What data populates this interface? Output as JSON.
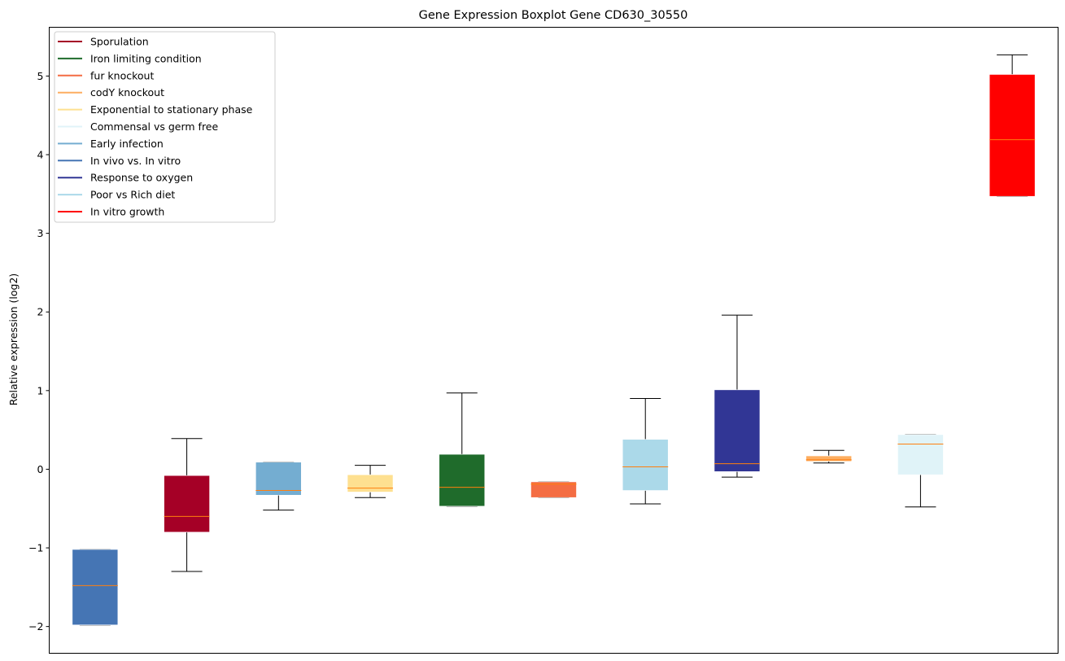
{
  "chart_data": {
    "type": "box",
    "title": "Gene Expression Boxplot Gene CD630_30550",
    "xlabel": "",
    "ylabel": "Relative expression (log2)",
    "ylim": [
      -2.34,
      5.62
    ],
    "yticks": [
      -2,
      -1,
      0,
      1,
      2,
      3,
      4,
      5
    ],
    "ytick_labels": [
      "−2",
      "−1",
      "0",
      "1",
      "2",
      "3",
      "4",
      "5"
    ],
    "grid": false,
    "legend_placement": "top-left",
    "legend": [
      {
        "name": "Sporulation",
        "color": "#a50026"
      },
      {
        "name": "Iron limiting condition",
        "color": "#1f6b2b"
      },
      {
        "name": "fur knockout",
        "color": "#f46d43"
      },
      {
        "name": "codY knockout",
        "color": "#fdae61"
      },
      {
        "name": "Exponential to stationary phase",
        "color": "#fee090"
      },
      {
        "name": "Commensal vs germ free",
        "color": "#e0f3f8"
      },
      {
        "name": "Early infection",
        "color": "#74add1"
      },
      {
        "name": "In vivo vs. In vitro",
        "color": "#4575b4"
      },
      {
        "name": "Response to oxygen",
        "color": "#313695"
      },
      {
        "name": "Poor vs Rich diet",
        "color": "#abd9e9"
      },
      {
        "name": "In vitro growth",
        "color": "#ff0000"
      }
    ],
    "median_color": "#ff7f0e",
    "boxes": [
      {
        "group": "In vivo vs. In vitro",
        "whislo": -1.98,
        "q1": -1.98,
        "median": -1.48,
        "q3": -1.02,
        "whishi": -1.02
      },
      {
        "group": "Sporulation",
        "whislo": -1.3,
        "q1": -0.8,
        "median": -0.6,
        "q3": -0.08,
        "whishi": 0.39
      },
      {
        "group": "Early infection",
        "whislo": -0.52,
        "q1": -0.33,
        "median": -0.27,
        "q3": 0.09,
        "whishi": 0.09
      },
      {
        "group": "Exponential to stationary phase",
        "whislo": -0.36,
        "q1": -0.29,
        "median": -0.24,
        "q3": -0.07,
        "whishi": 0.05
      },
      {
        "group": "Iron limiting condition",
        "whislo": -0.47,
        "q1": -0.47,
        "median": -0.23,
        "q3": 0.19,
        "whishi": 0.97
      },
      {
        "group": "fur knockout",
        "whislo": -0.36,
        "q1": -0.36,
        "median": -0.19,
        "q3": -0.16,
        "whishi": -0.16
      },
      {
        "group": "Poor vs Rich diet",
        "whislo": -0.44,
        "q1": -0.27,
        "median": 0.03,
        "q3": 0.38,
        "whishi": 0.9
      },
      {
        "group": "Response to oxygen",
        "whislo": -0.1,
        "q1": -0.03,
        "median": 0.07,
        "q3": 1.01,
        "whishi": 1.96
      },
      {
        "group": "codY knockout",
        "whislo": 0.08,
        "q1": 0.1,
        "median": 0.12,
        "q3": 0.17,
        "whishi": 0.24
      },
      {
        "group": "Commensal vs germ free",
        "whislo": -0.48,
        "q1": -0.07,
        "median": 0.32,
        "q3": 0.44,
        "whishi": 0.44
      },
      {
        "group": "In vitro growth",
        "whislo": 3.47,
        "q1": 3.47,
        "median": 4.19,
        "q3": 5.02,
        "whishi": 5.27
      }
    ]
  }
}
